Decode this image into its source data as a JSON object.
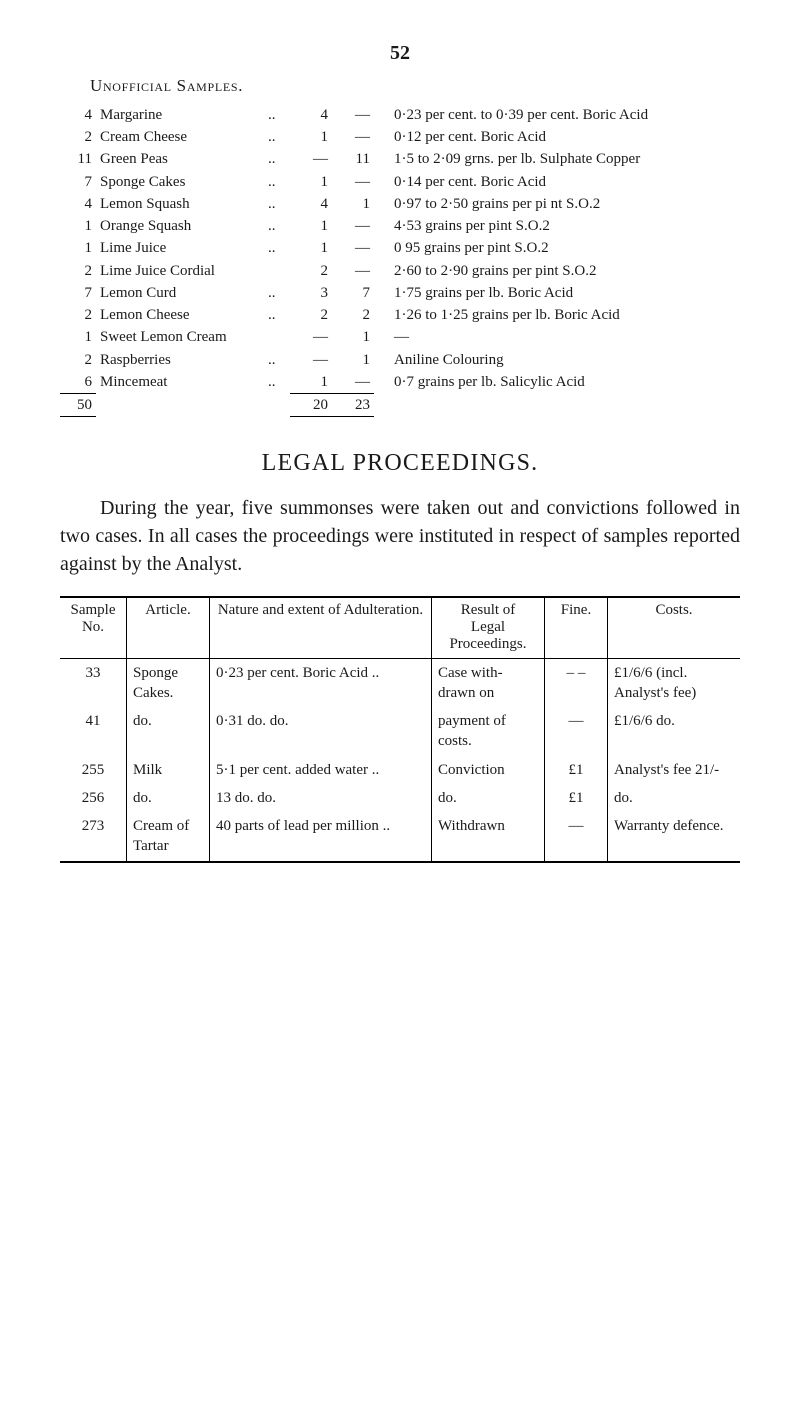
{
  "page_number": "52",
  "unofficial_samples": {
    "heading": "Unofficial Samples.",
    "rows": [
      {
        "qty": "4",
        "name": "Margarine",
        "dots": "..",
        "a": "4",
        "b": "—",
        "desc": "0·23 per cent. to 0·39 per cent. Boric Acid"
      },
      {
        "qty": "2",
        "name": "Cream Cheese",
        "dots": "..",
        "a": "1",
        "b": "—",
        "desc": "0·12 per cent. Boric Acid"
      },
      {
        "qty": "11",
        "name": "Green Peas",
        "dots": "..",
        "a": "—",
        "b": "11",
        "desc": "1·5 to 2·09 grns. per lb. Sulphate Copper"
      },
      {
        "qty": "7",
        "name": "Sponge Cakes",
        "dots": "..",
        "a": "1",
        "b": "—",
        "desc": "0·14 per cent. Boric Acid"
      },
      {
        "qty": "4",
        "name": "Lemon Squash",
        "dots": "..",
        "a": "4",
        "b": "1",
        "desc": "0·97 to 2·50 grains per pi nt S.O.2"
      },
      {
        "qty": "1",
        "name": "Orange Squash",
        "dots": "..",
        "a": "1",
        "b": "—",
        "desc": "4·53 grains per pint S.O.2"
      },
      {
        "qty": "1",
        "name": "Lime Juice",
        "dots": "..",
        "a": "1",
        "b": "—",
        "desc": "0 95 grains per pint S.O.2"
      },
      {
        "qty": "2",
        "name": "Lime Juice Cordial",
        "dots": "",
        "a": "2",
        "b": "—",
        "desc": "2·60 to 2·90 grains per pint S.O.2"
      },
      {
        "qty": "7",
        "name": "Lemon Curd",
        "dots": "..",
        "a": "3",
        "b": "7",
        "desc": "1·75 grains per lb. Boric Acid"
      },
      {
        "qty": "2",
        "name": "Lemon Cheese",
        "dots": "..",
        "a": "2",
        "b": "2",
        "desc": "1·26 to 1·25 grains per lb. Boric Acid"
      },
      {
        "qty": "1",
        "name": "Sweet Lemon Cream",
        "dots": "",
        "a": "—",
        "b": "1",
        "desc": "—"
      },
      {
        "qty": "2",
        "name": "Raspberries",
        "dots": "..",
        "a": "—",
        "b": "1",
        "desc": "Aniline Colouring"
      },
      {
        "qty": "6",
        "name": "Mincemeat",
        "dots": "..",
        "a": "1",
        "b": "—",
        "desc": "0·7 grains per lb. Salicylic Acid"
      }
    ],
    "totals": {
      "qty": "50",
      "a": "20",
      "b": "23"
    }
  },
  "legal_heading": "LEGAL PROCEEDINGS.",
  "legal_paragraph": "During the year, five summonses were taken out and convictions followed in two cases. In all cases the proceedings were instituted in respect of samples reported against by the Analyst.",
  "proceedings_table": {
    "headers": {
      "sample": "Sample\nNo.",
      "article": "Article.",
      "nature": "Nature and extent of Adulteration.",
      "result": "Result of\nLegal\nProceedings.",
      "fine": "Fine.",
      "costs": "Costs."
    },
    "rows": [
      {
        "no": "33",
        "article": "Sponge Cakes.",
        "nature": "0·23 per cent. Boric Acid       ..",
        "result": "Case with-drawn on",
        "fine": "– –",
        "costs": "£1/6/6 (incl. Analyst's fee)"
      },
      {
        "no": "41",
        "article": "do.",
        "nature": "0·31       do.              do.",
        "result": "payment of costs.",
        "fine": "—",
        "costs": "£1/6/6 do."
      },
      {
        "no": "255",
        "article": "Milk",
        "nature": "5·1 per cent. added water      ..",
        "result": "Conviction",
        "fine": "£1",
        "costs": "Analyst's fee 21/-"
      },
      {
        "no": "256",
        "article": "do.",
        "nature": "13        do.              do.",
        "result": "do.",
        "fine": "£1",
        "costs": "do."
      },
      {
        "no": "273",
        "article": "Cream of Tartar",
        "nature": "40 parts of lead per million   ..",
        "result": "Withdrawn",
        "fine": "—",
        "costs": "Warranty defence."
      }
    ]
  }
}
